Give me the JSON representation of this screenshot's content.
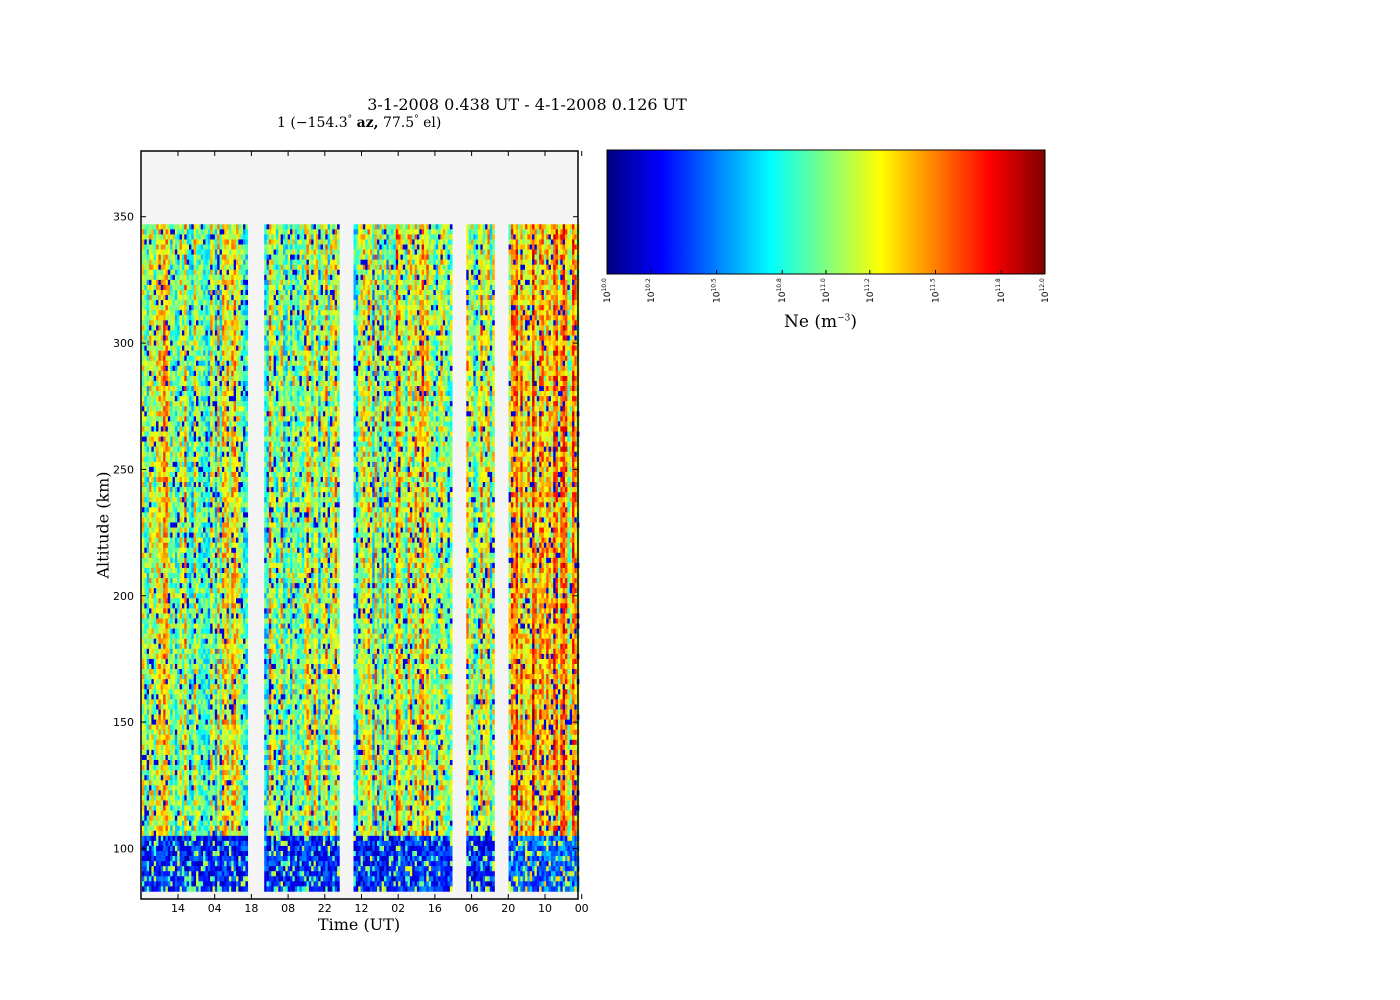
{
  "chart_data": {
    "type": "heatmap",
    "title": "3-1-2008 0.438 UT - 4-1-2008 0.126 UT",
    "subtitle": {
      "beam": "1",
      "azimuth": "−154.3",
      "az_label": "az,",
      "elevation": "77.5",
      "el_label": "el)"
    },
    "xlabel": "Time (UT)",
    "ylabel": "Altitude (km)",
    "x_ticks": [
      "14",
      "04",
      "18",
      "08",
      "22",
      "12",
      "02",
      "16",
      "06",
      "20",
      "10",
      "00"
    ],
    "y_ticks": [
      100,
      150,
      200,
      250,
      300,
      350
    ],
    "ylim": [
      80,
      376
    ],
    "altitude_range_km": [
      83,
      347
    ],
    "data_gaps": "white columns near ticks 18, 22, 16 and 20",
    "colorbar": {
      "label": "Ne (m",
      "label_exp": "−3",
      "scale": "log",
      "range": [
        10.0,
        12.0
      ],
      "tick_bases": "10",
      "tick_exponents": [
        "10.0",
        "10.2",
        "10.5",
        "10.8",
        "11.0",
        "11.2",
        "11.5",
        "11.8",
        "12.0"
      ],
      "colormap": "jet"
    },
    "grid": false,
    "legend": "none"
  },
  "colors": {
    "missing_data_background": "#f5f5f5",
    "jet": [
      "#00007f",
      "#0000ff",
      "#007fff",
      "#00ffff",
      "#7fff7f",
      "#ffff00",
      "#ff7f00",
      "#ff0000",
      "#7f0000"
    ]
  }
}
